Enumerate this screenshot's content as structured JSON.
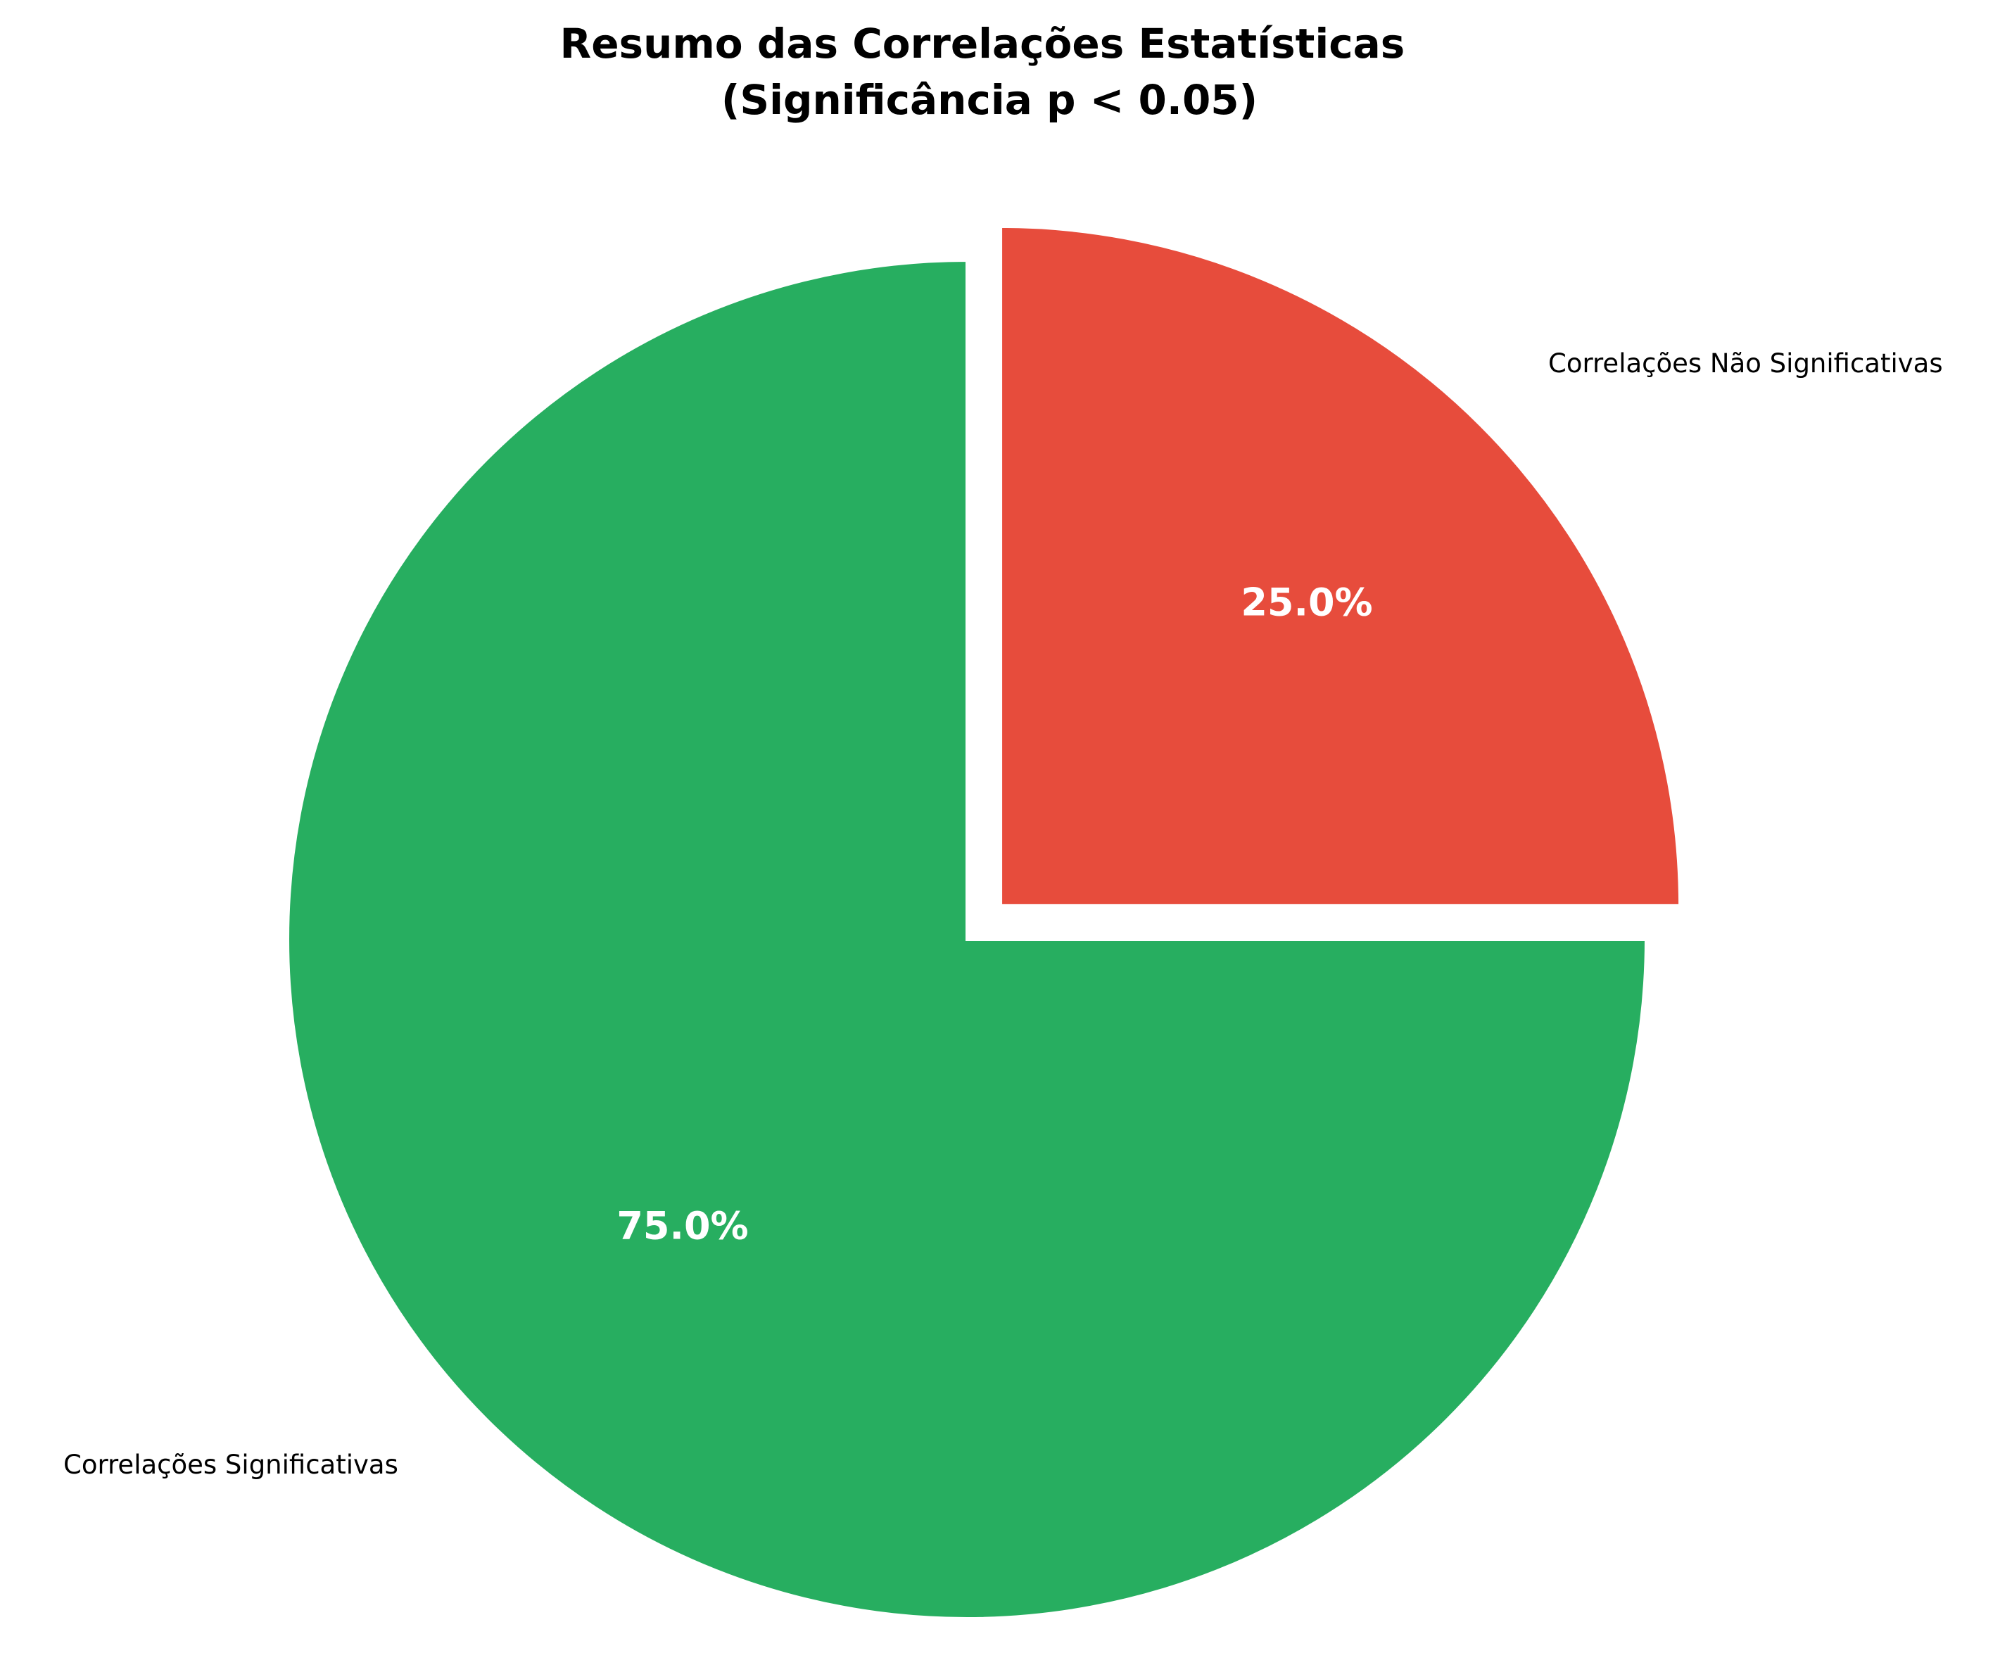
{
  "chart_data": {
    "type": "pie",
    "title": "Resumo das Correlações Estatísticas\n(Significância p < 0.05)",
    "title_lines": [
      "Resumo das Correlações Estatísticas",
      "(Significância p < 0.05)"
    ],
    "slices": [
      {
        "label": "Correlações Significativas",
        "value": 75.0,
        "pct_label": "75.0%",
        "color": "#27ae60",
        "exploded": false
      },
      {
        "label": "Correlações Não Significativas",
        "value": 25.0,
        "pct_label": "25.0%",
        "color": "#e74c3c",
        "exploded": true
      }
    ],
    "start_angle": "top",
    "direction": "counterclockwise",
    "legend": "none"
  }
}
